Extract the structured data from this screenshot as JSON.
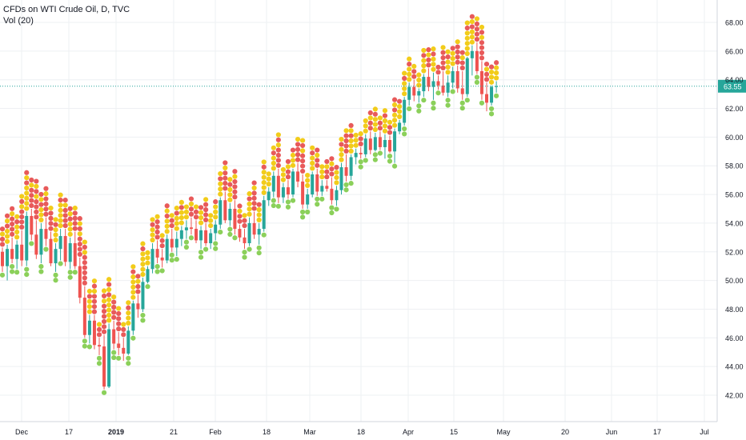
{
  "header": {
    "title": "CFDs on WTI Crude Oil, D, TVC",
    "indicator": "Vol (20)"
  },
  "colors": {
    "bull": "#26a69a",
    "bear": "#ef5350",
    "dot_red": "#e85a5a",
    "dot_yellow": "#f2cc1a",
    "dot_green": "#8bd05a",
    "grid": "#eef0f3",
    "price_line": "#26a69a",
    "axis_text": "#131722"
  },
  "chart_data": {
    "type": "candlestick",
    "title": "CFDs on WTI Crude Oil, D, TVC",
    "ylim": [
      40.5,
      69.5
    ],
    "y_ticks": [
      "42.00",
      "44.00",
      "46.00",
      "48.00",
      "50.00",
      "52.00",
      "54.00",
      "56.00",
      "58.00",
      "60.00",
      "62.00",
      "64.00",
      "66.00",
      "68.00"
    ],
    "x_ticks": [
      "Dec",
      "17",
      "2019",
      "21",
      "Feb",
      "18",
      "Mar",
      "18",
      "Apr",
      "15",
      "May",
      "20",
      "Jun",
      "17",
      "Jul"
    ],
    "last_price": "63.55",
    "last_price_value": 63.55,
    "grid": true,
    "candles": [
      [
        52.0,
        52.3,
        50.6,
        51.0
      ],
      [
        51.0,
        52.5,
        50.0,
        52.2
      ],
      [
        52.2,
        53.0,
        51.2,
        51.5
      ],
      [
        51.5,
        52.8,
        50.8,
        52.5
      ],
      [
        52.5,
        53.5,
        51.0,
        51.4
      ],
      [
        51.4,
        54.8,
        51.0,
        54.5
      ],
      [
        54.5,
        55.0,
        52.8,
        53.2
      ],
      [
        53.2,
        54.2,
        51.5,
        51.8
      ],
      [
        51.8,
        54.0,
        51.2,
        53.6
      ],
      [
        53.6,
        54.4,
        52.4,
        52.9
      ],
      [
        52.9,
        53.4,
        51.0,
        51.2
      ],
      [
        51.2,
        52.6,
        50.6,
        52.2
      ],
      [
        52.2,
        53.6,
        51.4,
        53.1
      ],
      [
        53.1,
        53.6,
        51.0,
        51.3
      ],
      [
        51.3,
        53.0,
        50.8,
        52.6
      ],
      [
        52.6,
        53.4,
        50.8,
        51.0
      ],
      [
        51.0,
        51.6,
        48.4,
        48.8
      ],
      [
        48.8,
        49.6,
        46.0,
        46.2
      ],
      [
        46.2,
        47.6,
        45.6,
        47.2
      ],
      [
        47.2,
        47.6,
        45.2,
        45.5
      ],
      [
        45.5,
        46.0,
        44.8,
        45.4
      ],
      [
        45.4,
        46.2,
        42.4,
        42.6
      ],
      [
        42.6,
        47.0,
        42.5,
        46.6
      ],
      [
        46.6,
        47.2,
        45.2,
        45.6
      ],
      [
        45.6,
        46.4,
        44.8,
        45.3
      ],
      [
        45.3,
        46.0,
        44.4,
        44.9
      ],
      [
        44.9,
        46.8,
        44.8,
        46.5
      ],
      [
        46.5,
        48.6,
        46.2,
        48.4
      ],
      [
        48.4,
        49.0,
        47.4,
        48.0
      ],
      [
        48.0,
        50.2,
        47.8,
        49.9
      ],
      [
        49.9,
        51.0,
        49.8,
        50.8
      ],
      [
        50.8,
        52.6,
        50.5,
        52.2
      ],
      [
        52.2,
        52.8,
        51.2,
        51.6
      ],
      [
        51.6,
        52.2,
        50.9,
        51.4
      ],
      [
        51.4,
        53.2,
        51.2,
        52.9
      ],
      [
        52.9,
        53.6,
        52.0,
        52.3
      ],
      [
        52.3,
        53.4,
        51.7,
        52.9
      ],
      [
        52.9,
        53.8,
        52.4,
        53.5
      ],
      [
        53.5,
        54.2,
        52.9,
        53.7
      ],
      [
        53.7,
        54.4,
        53.2,
        53.6
      ],
      [
        53.6,
        54.2,
        52.6,
        52.8
      ],
      [
        52.8,
        53.8,
        52.2,
        53.5
      ],
      [
        53.5,
        54.0,
        52.4,
        52.6
      ],
      [
        52.6,
        53.6,
        52.2,
        53.3
      ],
      [
        53.3,
        54.2,
        52.8,
        53.9
      ],
      [
        53.9,
        55.8,
        53.6,
        55.6
      ],
      [
        55.6,
        56.2,
        54.0,
        54.2
      ],
      [
        54.2,
        55.4,
        53.8,
        55.0
      ],
      [
        55.0,
        55.6,
        53.2,
        53.6
      ],
      [
        53.6,
        53.9,
        52.7,
        53.0
      ],
      [
        53.0,
        53.6,
        52.2,
        52.6
      ],
      [
        52.6,
        54.4,
        52.4,
        54.0
      ],
      [
        54.0,
        54.8,
        52.9,
        53.2
      ],
      [
        53.2,
        54.0,
        52.5,
        53.6
      ],
      [
        53.6,
        55.9,
        53.4,
        55.6
      ],
      [
        55.6,
        56.5,
        55.2,
        56.2
      ],
      [
        56.2,
        57.6,
        55.8,
        57.3
      ],
      [
        57.3,
        57.8,
        55.4,
        55.8
      ],
      [
        55.8,
        56.8,
        55.4,
        56.5
      ],
      [
        56.5,
        57.0,
        55.7,
        56.0
      ],
      [
        56.0,
        57.8,
        55.8,
        57.6
      ],
      [
        57.6,
        58.2,
        56.5,
        56.9
      ],
      [
        56.9,
        57.4,
        55.0,
        55.3
      ],
      [
        55.3,
        56.4,
        55.0,
        56.0
      ],
      [
        56.0,
        57.6,
        55.8,
        57.4
      ],
      [
        57.4,
        57.8,
        55.9,
        56.2
      ],
      [
        56.2,
        57.0,
        55.9,
        56.6
      ],
      [
        56.6,
        57.0,
        56.2,
        56.4
      ],
      [
        56.4,
        57.2,
        55.3,
        55.6
      ],
      [
        55.6,
        56.6,
        55.2,
        56.3
      ],
      [
        56.3,
        58.2,
        56.0,
        57.9
      ],
      [
        57.9,
        58.8,
        56.9,
        57.3
      ],
      [
        57.3,
        58.8,
        57.0,
        58.6
      ],
      [
        58.6,
        59.2,
        58.1,
        58.9
      ],
      [
        58.9,
        59.3,
        58.5,
        58.8
      ],
      [
        58.8,
        60.2,
        58.6,
        59.9
      ],
      [
        59.9,
        60.4,
        58.8,
        59.1
      ],
      [
        59.1,
        60.3,
        59.0,
        60.0
      ],
      [
        60.0,
        60.4,
        59.1,
        59.3
      ],
      [
        59.3,
        60.2,
        58.5,
        59.8
      ],
      [
        59.8,
        60.1,
        58.9,
        59.0
      ],
      [
        59.0,
        60.6,
        58.2,
        60.4
      ],
      [
        60.4,
        61.2,
        60.2,
        61.0
      ],
      [
        61.0,
        62.8,
        60.8,
        62.6
      ],
      [
        62.6,
        63.8,
        62.2,
        63.5
      ],
      [
        63.5,
        64.0,
        62.5,
        62.9
      ],
      [
        62.9,
        63.4,
        62.4,
        63.2
      ],
      [
        63.2,
        64.4,
        62.8,
        64.2
      ],
      [
        64.2,
        64.8,
        63.2,
        63.5
      ],
      [
        63.5,
        64.5,
        62.6,
        63.9
      ],
      [
        63.9,
        64.3,
        63.3,
        63.6
      ],
      [
        63.6,
        64.6,
        62.9,
        63.1
      ],
      [
        63.1,
        64.3,
        62.8,
        63.8
      ],
      [
        63.8,
        64.9,
        63.4,
        64.6
      ],
      [
        64.6,
        65.0,
        63.1,
        63.4
      ],
      [
        63.4,
        64.6,
        62.6,
        63.0
      ],
      [
        63.0,
        65.6,
        62.8,
        65.5
      ],
      [
        65.5,
        66.4,
        64.3,
        66.0
      ],
      [
        66.0,
        66.6,
        64.4,
        64.6
      ],
      [
        64.6,
        65.3,
        62.6,
        63.0
      ],
      [
        63.0,
        63.8,
        61.8,
        62.4
      ],
      [
        62.4,
        63.6,
        62.2,
        63.5
      ],
      [
        63.5,
        63.9,
        63.1,
        63.55
      ]
    ]
  }
}
